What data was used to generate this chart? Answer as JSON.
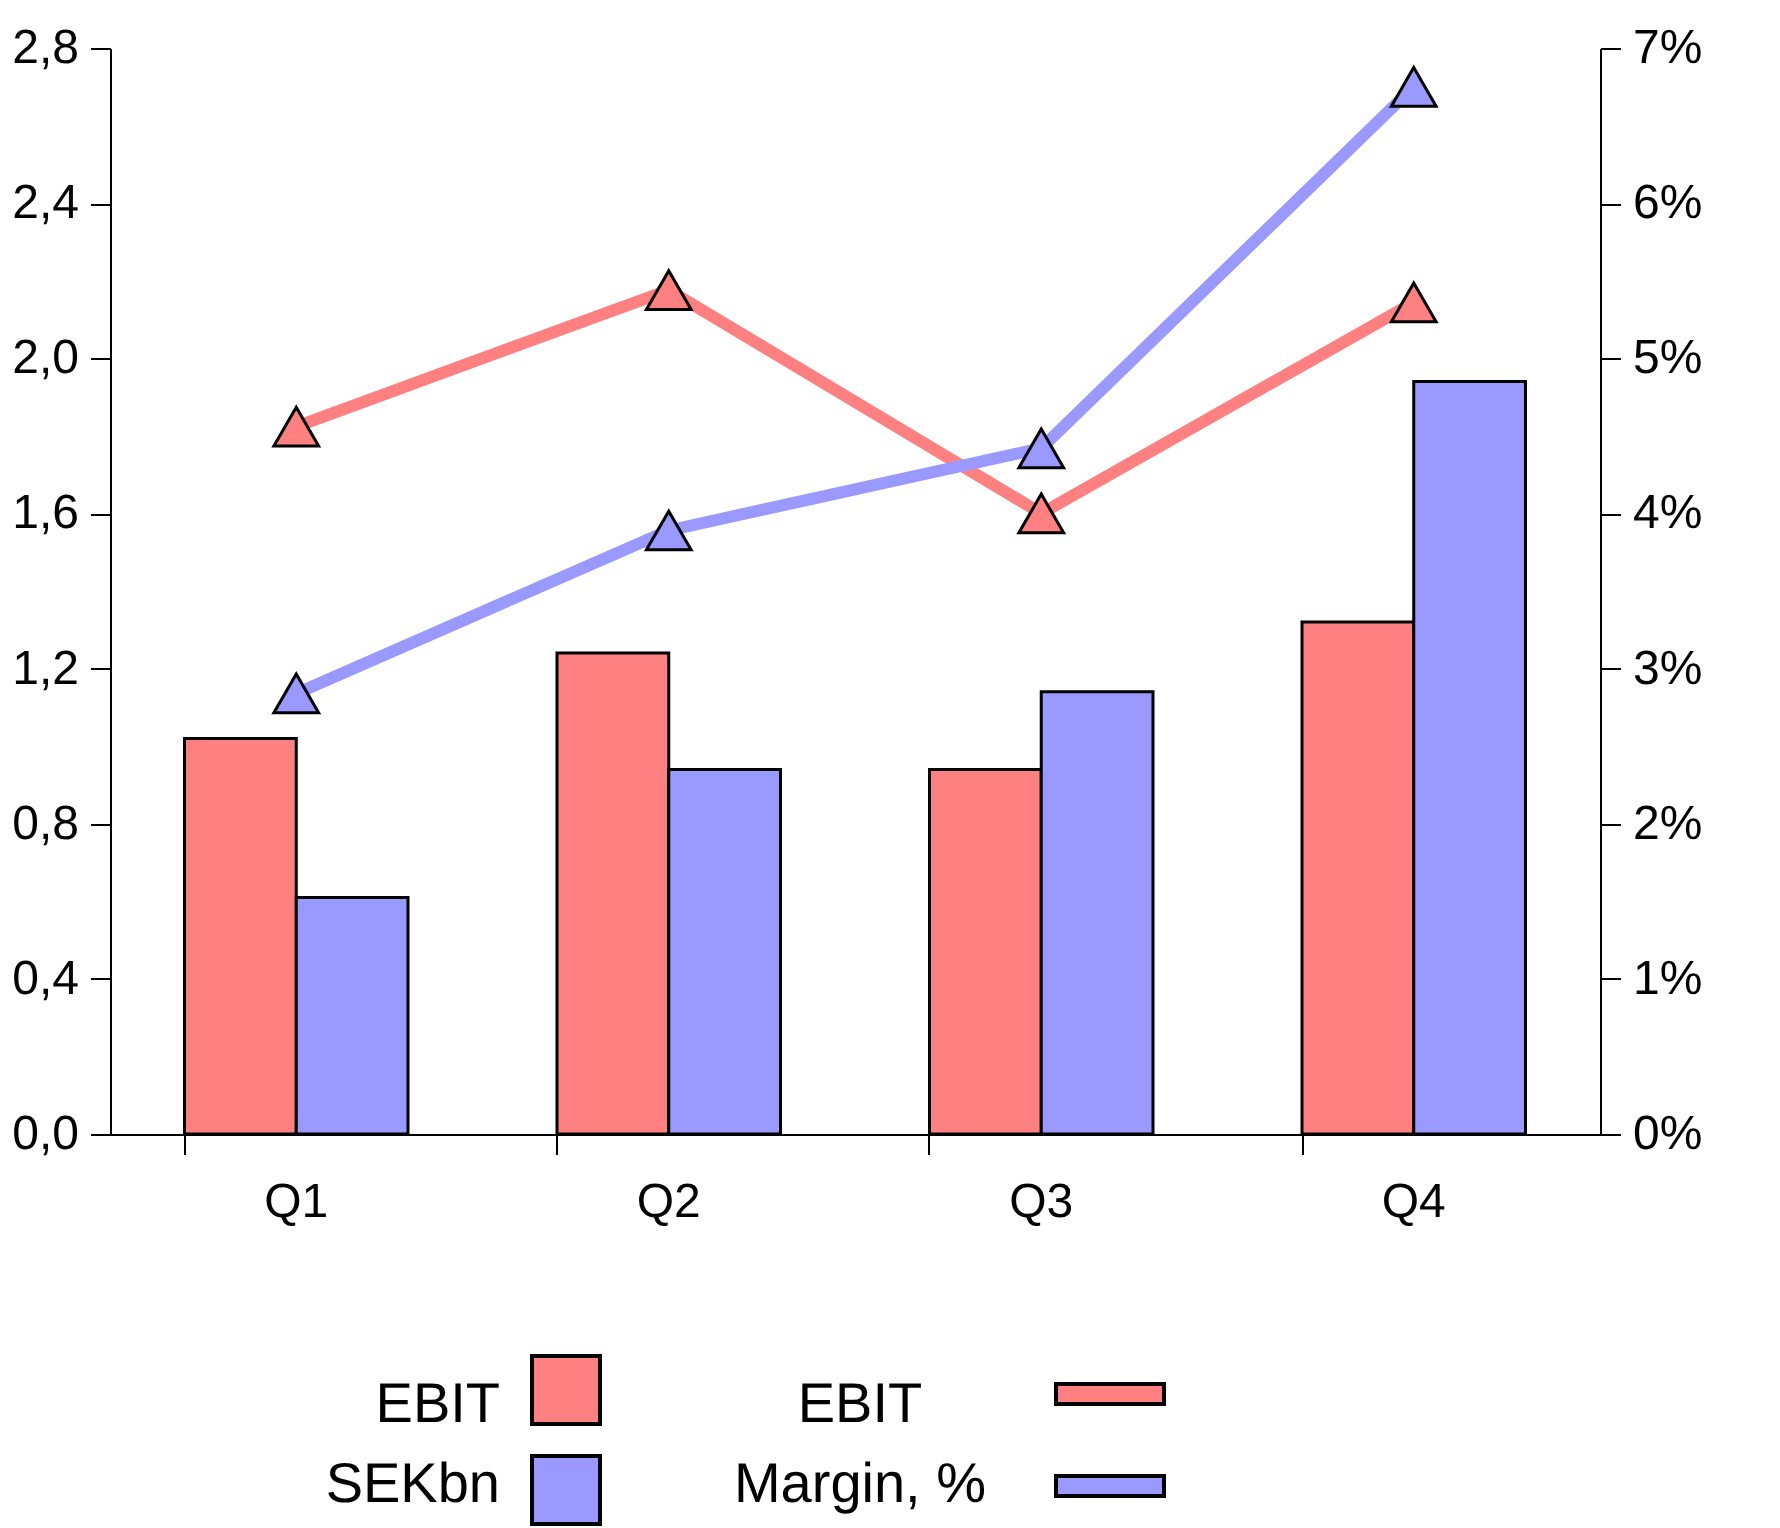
{
  "chart_data": {
    "type": "bar",
    "categories": [
      "Q1",
      "Q2",
      "Q3",
      "Q4"
    ],
    "series": [
      {
        "color": "#ff8080",
        "values": [
          1.02,
          1.24,
          0.94,
          1.32
        ]
      },
      {
        "color": "#9999ff",
        "values": [
          0.61,
          0.94,
          1.14,
          1.94
        ]
      },
      {
        "type": "line",
        "axis": "y2",
        "color": "#ff8080",
        "values": [
          4.56,
          5.44,
          4.0,
          5.36
        ]
      },
      {
        "type": "line",
        "axis": "y2",
        "color": "#9999ff",
        "values": [
          2.84,
          3.89,
          4.42,
          6.75
        ]
      }
    ],
    "ylim": [
      0,
      2.8
    ],
    "yticks": [
      {
        "value": 0,
        "label": "0,0"
      },
      {
        "value": 0.4,
        "label": "0,4"
      },
      {
        "value": 0.8,
        "label": "0,8"
      },
      {
        "value": 1.2,
        "label": "1,2"
      },
      {
        "value": 1.6,
        "label": "1,6"
      },
      {
        "value": 2.0,
        "label": "2,0"
      },
      {
        "value": 2.4,
        "label": "2,4"
      },
      {
        "value": 2.8,
        "label": "2,8"
      }
    ],
    "y2lim": [
      0,
      7
    ],
    "y2ticks": [
      {
        "value": 0,
        "label": "0%"
      },
      {
        "value": 1,
        "label": "1%"
      },
      {
        "value": 2,
        "label": "2%"
      },
      {
        "value": 3,
        "label": "3%"
      },
      {
        "value": 4,
        "label": "4%"
      },
      {
        "value": 5,
        "label": "5%"
      },
      {
        "value": 6,
        "label": "6%"
      },
      {
        "value": 7,
        "label": "7%"
      }
    ],
    "marker": "triangle",
    "annotations": [
      "EBIT SEKbn",
      "EBIT Margin, %"
    ]
  }
}
